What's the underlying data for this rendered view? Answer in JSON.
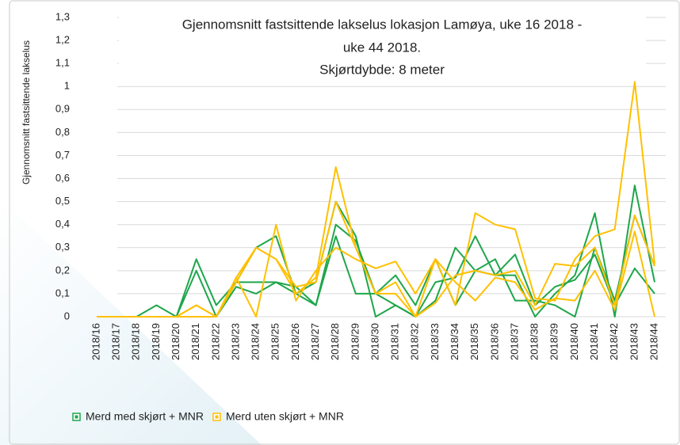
{
  "chart_data": {
    "type": "line",
    "title": [
      "Gjennomsnitt fastsittende lakselus lokasjon Lamøya, uke 16 2018 -",
      "uke 44 2018.",
      "Skjørtdybde: 8 meter"
    ],
    "y_label": "Gjennomsnitt fastsittende lakselus",
    "categories": [
      "2018/16",
      "2018/17",
      "2018/18",
      "2018/19",
      "2018/20",
      "2018/21",
      "2018/22",
      "2018/23",
      "2018/24",
      "2018/25",
      "2018/26",
      "2018/27",
      "2018/28",
      "2018/29",
      "2018/30",
      "2018/31",
      "2018/32",
      "2018/33",
      "2018/34",
      "2018/35",
      "2018/36",
      "2018/37",
      "2018/38",
      "2018/39",
      "2018/40",
      "2018/41",
      "2018/42",
      "2018/43",
      "2018/44"
    ],
    "series": [
      {
        "name": "Merd med skjørt + MNR",
        "color": "#1ea64b",
        "values": [
          [
            0,
            0,
            0,
            0.05,
            0,
            0.25,
            0.05,
            0.15,
            0.15,
            0.15,
            0.1,
            0.15,
            0.5,
            0.35,
            0,
            0.05,
            0,
            0.15,
            0.17,
            0.35,
            0.18,
            0.18,
            0,
            0.1,
            0.18,
            0.45,
            0,
            0.57,
            0.15
          ],
          [
            0,
            0,
            0,
            0,
            0,
            0.2,
            0,
            0.15,
            0.3,
            0.35,
            0.1,
            0.05,
            0.4,
            0.33,
            0.1,
            0.18,
            0.05,
            0.25,
            0.05,
            0.2,
            0.25,
            0.07,
            0.07,
            0.05,
            0,
            0.3,
            0.07,
            0.44,
            0.22
          ],
          [
            0,
            0,
            0,
            0,
            0,
            0,
            0,
            0.13,
            0.1,
            0.15,
            0.13,
            0.05,
            0.35,
            0.1,
            0.1,
            0.05,
            0,
            0.07,
            0.3,
            0.2,
            0.18,
            0.27,
            0.05,
            0.13,
            0.16,
            0.27,
            0.05,
            0.21,
            0.1
          ]
        ]
      },
      {
        "name": "Merd uten skjørt + MNR",
        "color": "#ffc000",
        "values": [
          [
            0,
            0,
            0,
            0,
            0,
            0.05,
            0,
            0.17,
            0.3,
            0.25,
            0.1,
            0.17,
            0.65,
            0.3,
            0.1,
            0.15,
            0,
            0.25,
            0.05,
            0.45,
            0.4,
            0.38,
            0.08,
            0.07,
            0.25,
            0.35,
            0.38,
            1.02,
            0.23
          ],
          [
            0,
            0,
            0,
            0,
            0,
            0.05,
            0,
            0.17,
            0,
            0.4,
            0.07,
            0.2,
            0.3,
            0.25,
            0.21,
            0.24,
            0.1,
            0.25,
            0.15,
            0.07,
            0.17,
            0.15,
            0.03,
            0.08,
            0.07,
            0.2,
            0.03,
            0.37,
            0
          ],
          [
            0,
            0,
            0,
            0,
            0,
            0,
            0,
            0.15,
            0.3,
            0.25,
            0.13,
            0.15,
            0.5,
            0.3,
            0.1,
            0.1,
            0,
            0.06,
            0.18,
            0.2,
            0.18,
            0.2,
            0.05,
            0.23,
            0.22,
            0.3,
            0.05,
            0.44,
            0.22
          ]
        ]
      }
    ],
    "ylim": [
      0,
      1.3
    ],
    "yticks": [
      0,
      {
        "value": 0.1,
        "label": "0,1"
      },
      {
        "value": 0.2,
        "label": "0,2"
      },
      {
        "value": 0.3,
        "label": "0,3"
      },
      {
        "value": 0.4,
        "label": "0,4"
      },
      {
        "value": 0.5,
        "label": "0,5"
      },
      {
        "value": 0.6,
        "label": "0,6"
      },
      {
        "value": 0.7,
        "label": "0,7"
      },
      {
        "value": 0.8,
        "label": "0,8"
      },
      {
        "value": 0.9,
        "label": "0,9"
      },
      1,
      {
        "value": 1.1,
        "label": "1,1"
      },
      {
        "value": 1.2,
        "label": "1,2"
      },
      {
        "value": 1.3,
        "label": "1,3"
      }
    ],
    "grid": true
  }
}
